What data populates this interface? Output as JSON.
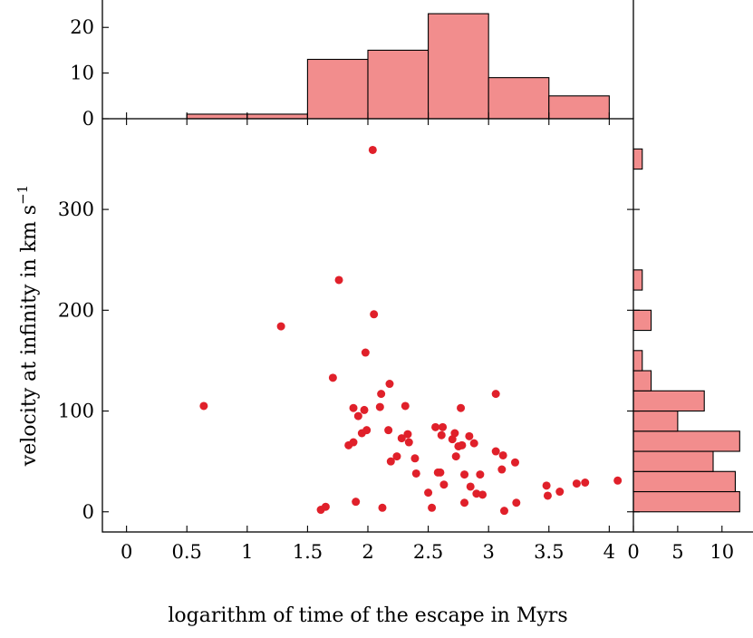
{
  "chart_data": [
    {
      "name": "joint-scatter",
      "type": "scatter",
      "xlabel": "logarithm of time of the escape in Myrs",
      "ylabel": "velocity at infinity in km s",
      "ylabel_sup": "−1",
      "xlim": [
        -0.2,
        4.2
      ],
      "ylim": [
        -20,
        390
      ],
      "xticks": [
        0,
        0.5,
        1,
        1.5,
        2,
        2.5,
        3,
        3.5,
        4
      ],
      "xtick_labels": [
        "0",
        "0.5",
        "1",
        "1.5",
        "2",
        "2.5",
        "3",
        "3.5",
        "4"
      ],
      "yticks": [
        0,
        100,
        200,
        300
      ],
      "ytick_labels": [
        "0",
        "100",
        "200",
        "300"
      ],
      "marker_color": "#e0202a",
      "grid": false,
      "points": [
        [
          0.64,
          105
        ],
        [
          1.28,
          184
        ],
        [
          1.71,
          133
        ],
        [
          1.76,
          230
        ],
        [
          1.61,
          2
        ],
        [
          1.65,
          5
        ],
        [
          1.84,
          66
        ],
        [
          1.88,
          103
        ],
        [
          1.88,
          69
        ],
        [
          1.9,
          10
        ],
        [
          1.92,
          95
        ],
        [
          1.95,
          78
        ],
        [
          1.97,
          101
        ],
        [
          1.98,
          158
        ],
        [
          1.99,
          81
        ],
        [
          2.04,
          359
        ],
        [
          2.05,
          196
        ],
        [
          2.1,
          104
        ],
        [
          2.11,
          117
        ],
        [
          2.12,
          4
        ],
        [
          2.17,
          81
        ],
        [
          2.18,
          127
        ],
        [
          2.19,
          50
        ],
        [
          2.24,
          55
        ],
        [
          2.28,
          73
        ],
        [
          2.31,
          105
        ],
        [
          2.33,
          77
        ],
        [
          2.34,
          69
        ],
        [
          2.39,
          53
        ],
        [
          2.4,
          38
        ],
        [
          2.5,
          19
        ],
        [
          2.53,
          4
        ],
        [
          2.56,
          84
        ],
        [
          2.58,
          39
        ],
        [
          2.6,
          39
        ],
        [
          2.61,
          76
        ],
        [
          2.62,
          84
        ],
        [
          2.63,
          27
        ],
        [
          2.7,
          72
        ],
        [
          2.72,
          78
        ],
        [
          2.73,
          55
        ],
        [
          2.75,
          65
        ],
        [
          2.77,
          103
        ],
        [
          2.78,
          66
        ],
        [
          2.8,
          37
        ],
        [
          2.8,
          9
        ],
        [
          2.84,
          75
        ],
        [
          2.85,
          25
        ],
        [
          2.88,
          68
        ],
        [
          2.9,
          18
        ],
        [
          2.93,
          37
        ],
        [
          2.95,
          17
        ],
        [
          3.06,
          117
        ],
        [
          3.06,
          60
        ],
        [
          3.11,
          42
        ],
        [
          3.12,
          56
        ],
        [
          3.13,
          1
        ],
        [
          3.22,
          49
        ],
        [
          3.23,
          9
        ],
        [
          3.48,
          26
        ],
        [
          3.49,
          16
        ],
        [
          3.59,
          20
        ],
        [
          3.73,
          28
        ],
        [
          3.8,
          29
        ],
        [
          4.07,
          31
        ]
      ]
    },
    {
      "name": "top-histogram",
      "type": "bar",
      "xlim": [
        -0.2,
        4.2
      ],
      "ylim": [
        0,
        26
      ],
      "yticks": [
        0,
        10,
        20
      ],
      "ytick_labels": [
        "0",
        "10",
        "20"
      ],
      "bin_edges": [
        0.5,
        1.0,
        1.5,
        2.0,
        2.5,
        3.0,
        3.5,
        4.0
      ],
      "counts": [
        1,
        1,
        13,
        15,
        23,
        9,
        5
      ],
      "color": "#f28d8d"
    },
    {
      "name": "right-histogram",
      "type": "bar",
      "orientation": "horizontal",
      "xlim": [
        0,
        13.5
      ],
      "xticks": [
        0,
        5,
        10
      ],
      "xtick_labels": [
        "0",
        "5",
        "10"
      ],
      "bin_edges": [
        0,
        20,
        40,
        60,
        80,
        100,
        120,
        140,
        160,
        180,
        200,
        220,
        240,
        260,
        280,
        300,
        320,
        340,
        360
      ],
      "counts": [
        12,
        11.5,
        9,
        12,
        5,
        8,
        2,
        1,
        0,
        2,
        0,
        1,
        0,
        0,
        0,
        0,
        0,
        1
      ],
      "color": "#f28d8d"
    }
  ]
}
